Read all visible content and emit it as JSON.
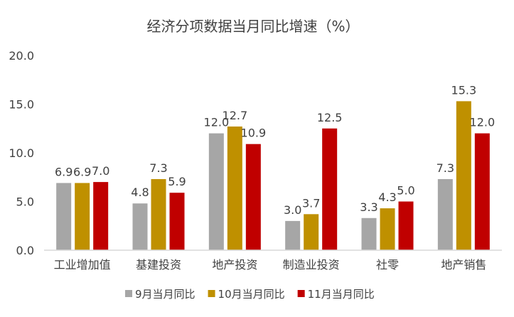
{
  "chart_data": {
    "type": "bar",
    "title": "经济分项数据当月同比增速（%）",
    "xlabel": "",
    "ylabel": "",
    "ylim": [
      0,
      20
    ],
    "yticks": [
      "0.0",
      "5.0",
      "10.0",
      "15.0",
      "20.0"
    ],
    "categories": [
      "工业增加值",
      "基建投资",
      "地产投资",
      "制造业投资",
      "社零",
      "地产销售"
    ],
    "series": [
      {
        "name": "9月当月同比",
        "color": "#a6a6a6",
        "values": [
          6.9,
          4.8,
          12.0,
          3.0,
          3.3,
          7.3
        ]
      },
      {
        "name": "10月当月同比",
        "color": "#bf9000",
        "values": [
          6.9,
          7.3,
          12.7,
          3.7,
          4.3,
          15.3
        ]
      },
      {
        "name": "11月当月同比",
        "color": "#c00000",
        "values": [
          7.0,
          5.9,
          10.9,
          12.5,
          5.0,
          12.0
        ]
      }
    ],
    "grid": false,
    "legend": "bottom"
  }
}
